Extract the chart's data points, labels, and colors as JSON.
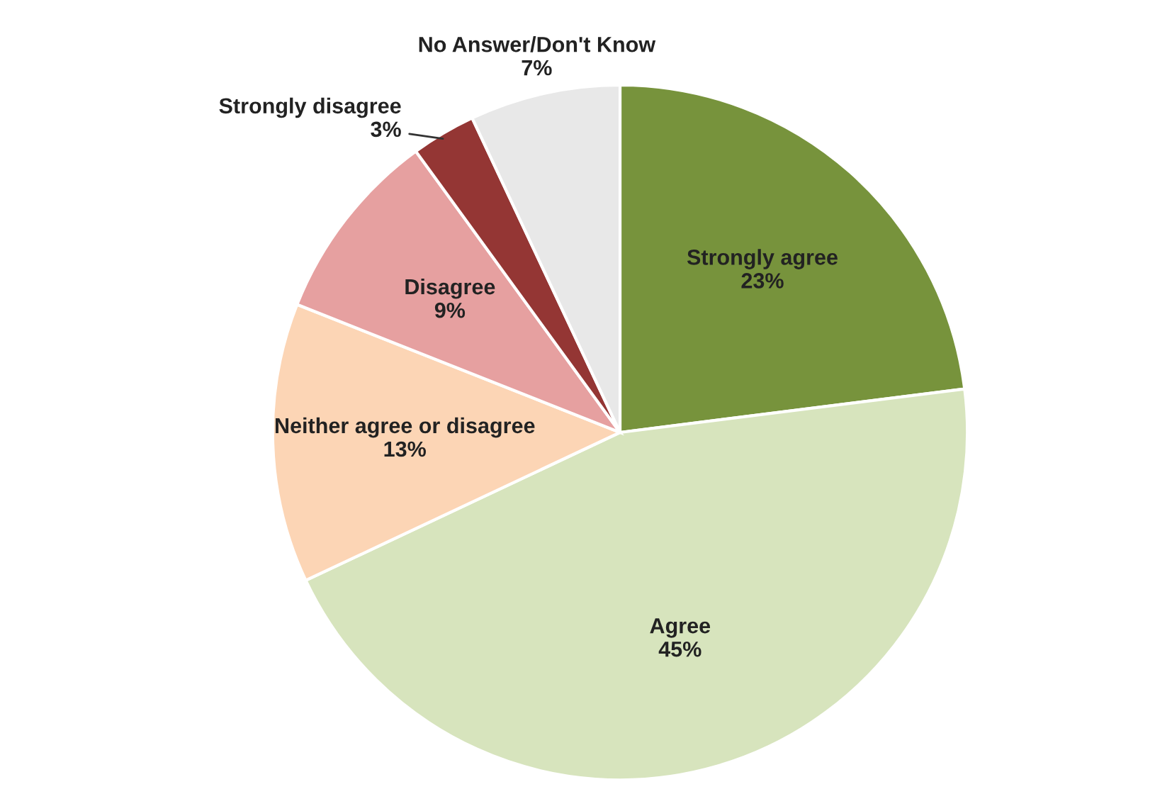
{
  "chart_data": {
    "type": "pie",
    "categories": [
      "Strongly agree",
      "Agree",
      "Neither agree or disagree",
      "Disagree",
      "Strongly disagree",
      "No Answer/Don't Know"
    ],
    "values": [
      23,
      45,
      13,
      9,
      3,
      7
    ],
    "value_labels": [
      "23%",
      "45%",
      "13%",
      "9%",
      "3%",
      "7%"
    ],
    "colors": [
      "#77933c",
      "#d7e4bd",
      "#fcd5b5",
      "#e6a0a0",
      "#943634",
      "#e8e8e8"
    ],
    "legend": false
  }
}
